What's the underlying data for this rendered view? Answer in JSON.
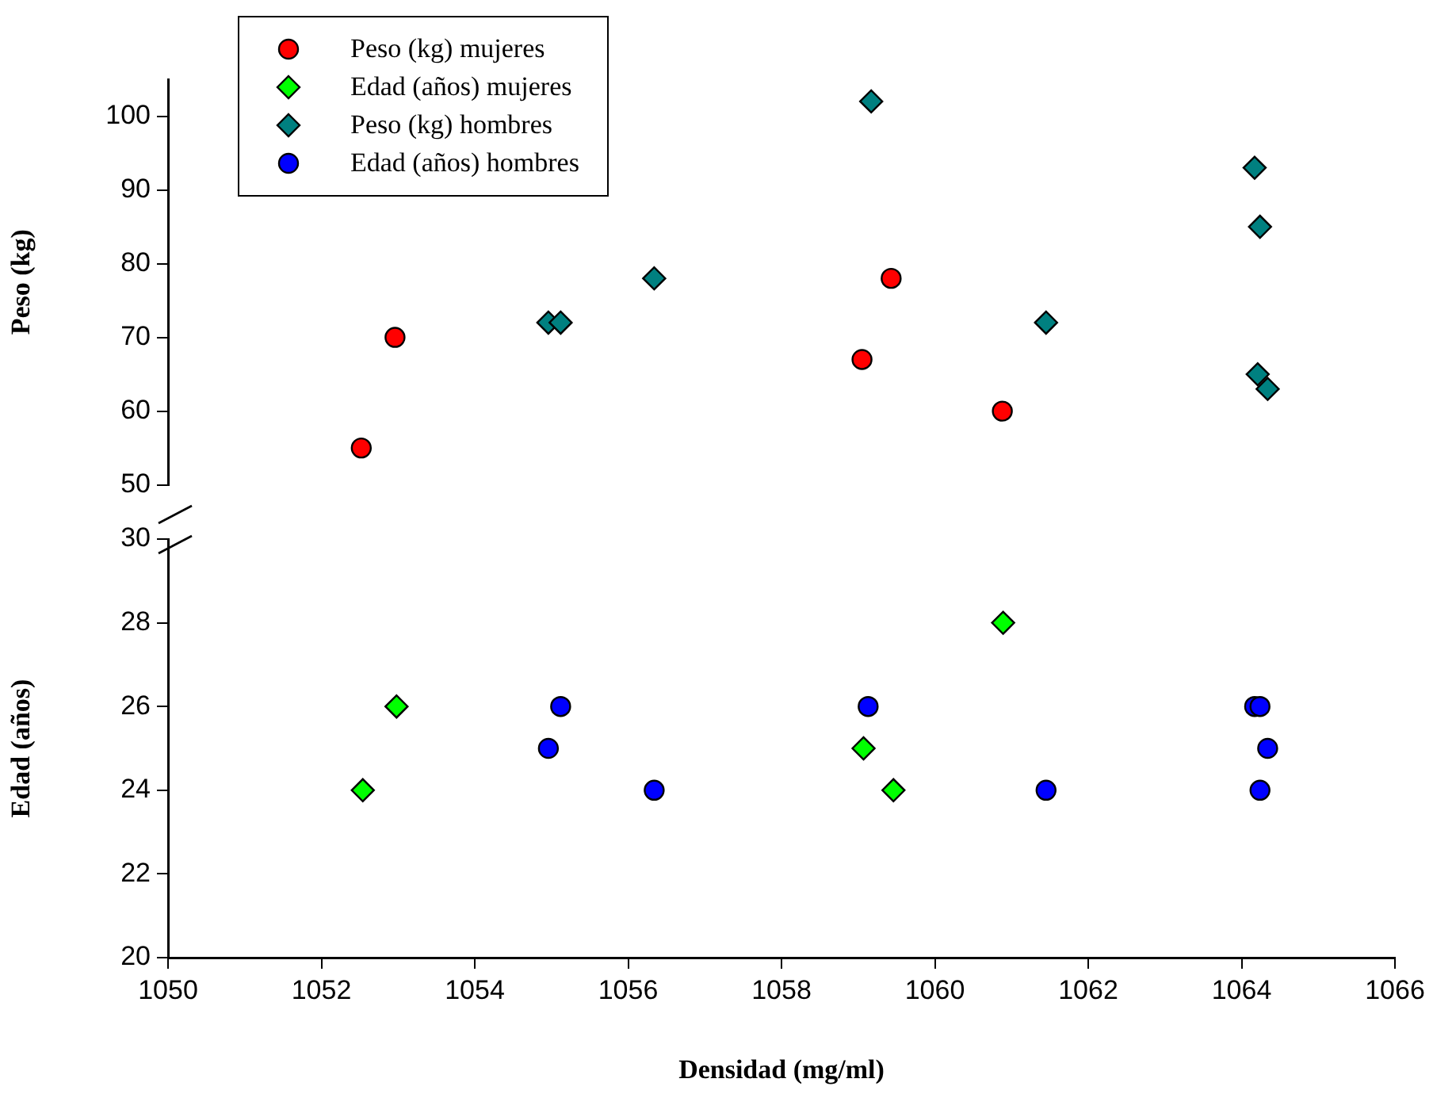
{
  "chart_data": [
    {
      "type": "scatter",
      "ylabel": "Peso (kg)",
      "xlim": [
        1050,
        1066
      ],
      "xticks": [
        1050,
        1052,
        1054,
        1056,
        1058,
        1060,
        1062,
        1064,
        1066
      ],
      "ylim": [
        50,
        105
      ],
      "yticks": [
        50,
        60,
        70,
        80,
        90,
        100
      ],
      "tick_labels": "y",
      "grid": false,
      "legend": "top left",
      "series": [
        {
          "name": "Peso (kg) mujeres",
          "color": "#ff0000",
          "marker": "circle",
          "x": [
            1052.52,
            1052.96,
            1059.05,
            1059.43,
            1060.88
          ],
          "values": [
            55,
            70,
            67,
            78,
            60
          ]
        },
        {
          "name": "Peso (kg) hombres",
          "color": "#008080",
          "marker": "diamond",
          "x": [
            1054.96,
            1055.12,
            1056.34,
            1059.17,
            1061.45,
            1064.17,
            1064.24,
            1064.21,
            1064.34
          ],
          "values": [
            72,
            72,
            78,
            102,
            72,
            93,
            85,
            65,
            63
          ]
        }
      ]
    },
    {
      "type": "scatter",
      "ylabel": "Edad (años)",
      "xlabel": "Densidad (mg/ml)",
      "xlim": [
        1050,
        1066
      ],
      "xticks": [
        1050,
        1052,
        1054,
        1056,
        1058,
        1060,
        1062,
        1064,
        1066
      ],
      "ylim": [
        20,
        30
      ],
      "yticks": [
        20,
        22,
        24,
        26,
        28,
        30
      ],
      "grid": false,
      "legend": "top left",
      "series": [
        {
          "name": "Edad (años) mujeres",
          "color": "#00ff00",
          "marker": "diamond",
          "x": [
            1052.54,
            1052.98,
            1059.07,
            1059.46,
            1060.89
          ],
          "values": [
            24,
            26,
            25,
            24,
            28
          ]
        },
        {
          "name": "Edad (años) hombres",
          "color": "#0000ff",
          "marker": "circle",
          "x": [
            1054.96,
            1055.12,
            1056.34,
            1059.13,
            1061.45,
            1064.17,
            1064.24,
            1064.24,
            1064.34
          ],
          "values": [
            25,
            26,
            24,
            26,
            24,
            26,
            26,
            24,
            25
          ]
        }
      ]
    }
  ]
}
